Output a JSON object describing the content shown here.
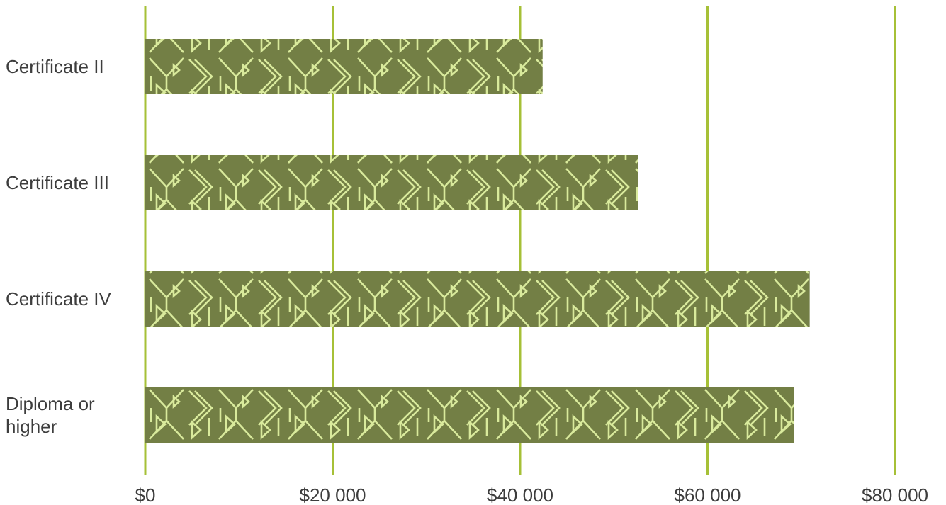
{
  "chart_data": {
    "type": "bar",
    "orientation": "horizontal",
    "title": "",
    "xlabel": "",
    "ylabel": "",
    "categories": [
      {
        "label_lines": [
          "Certificate II"
        ]
      },
      {
        "label_lines": [
          "Certificate III"
        ]
      },
      {
        "label_lines": [
          "Certificate IV"
        ]
      },
      {
        "label_lines": [
          "Diploma or",
          "higher"
        ]
      }
    ],
    "values": [
      42400,
      52600,
      70900,
      69200
    ],
    "xlim": [
      0,
      80000
    ],
    "x_ticks": [
      0,
      20000,
      40000,
      60000,
      80000
    ],
    "x_tick_labels": [
      "$0",
      "$20 000",
      "$40 000",
      "$60 000",
      "$80 000"
    ],
    "grid": "vertical",
    "legend": "none",
    "colors": {
      "bar": "#737f45",
      "pattern": "#d9ea9c",
      "grid": "#a6c037",
      "text": "#3d3d3d"
    }
  }
}
